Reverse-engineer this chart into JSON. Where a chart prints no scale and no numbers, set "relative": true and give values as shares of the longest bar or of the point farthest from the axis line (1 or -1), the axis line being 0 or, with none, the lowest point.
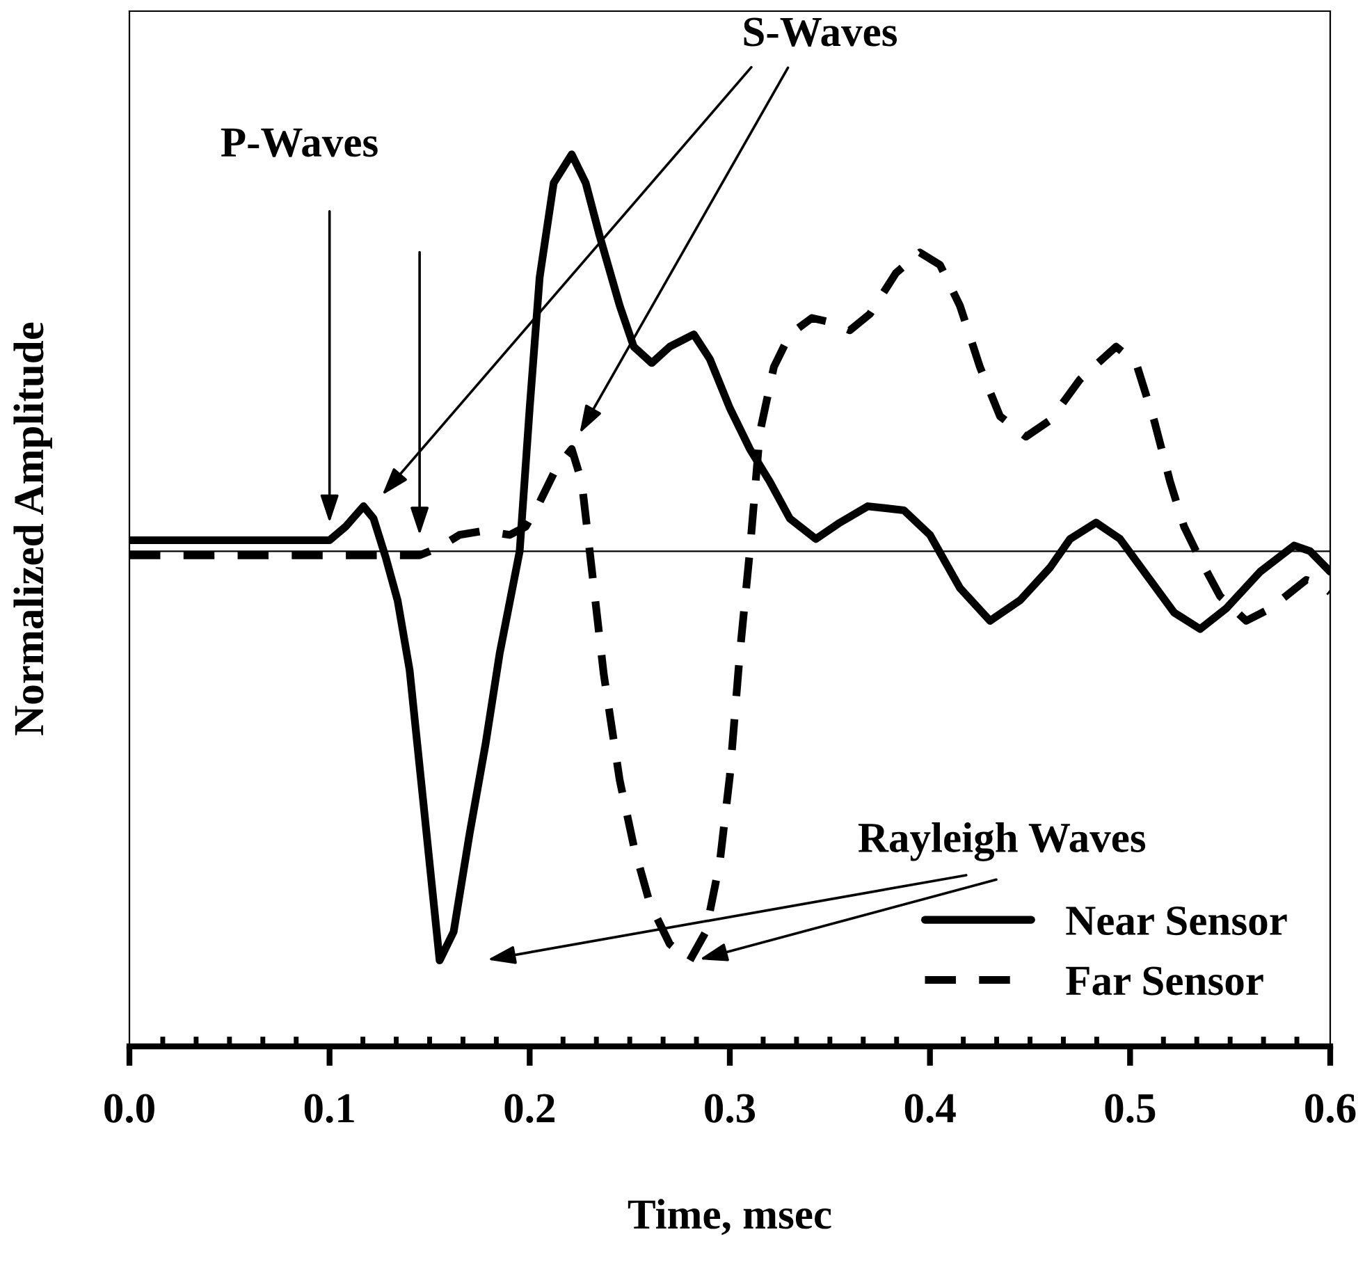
{
  "chart_data": {
    "type": "line",
    "relative": true,
    "xlabel": "Time, msec",
    "ylabel": "Normalized Amplitude",
    "xlim": [
      0,
      0.6
    ],
    "xticks": [
      {
        "value": 0,
        "label": "0.0"
      },
      {
        "value": 0.1,
        "label": "0.1"
      },
      {
        "value": 0.2,
        "label": "0.2"
      },
      {
        "value": 0.3,
        "label": "0.3"
      },
      {
        "value": 0.4,
        "label": "0.4"
      },
      {
        "value": 0.5,
        "label": "0.5"
      },
      {
        "value": 0.6,
        "label": "0.6"
      }
    ],
    "series": [
      {
        "name": "Near Sensor",
        "color": "#000000",
        "line_style": "solid",
        "x": [
          0,
          0.1,
          0.108,
          0.117,
          0.122,
          0.128,
          0.134,
          0.14,
          0.147,
          0.155,
          0.162,
          0.17,
          0.178,
          0.185,
          0.195,
          0.2,
          0.205,
          0.212,
          0.221,
          0.228,
          0.235,
          0.245,
          0.252,
          0.261,
          0.27,
          0.282,
          0.29,
          0.3,
          0.31,
          0.32,
          0.33,
          0.343,
          0.355,
          0.369,
          0.387,
          0.4,
          0.415,
          0.43,
          0.445,
          0.46,
          0.47,
          0.483,
          0.495,
          0.51,
          0.522,
          0.535,
          0.548,
          0.565,
          0.582,
          0.59,
          0.6
        ],
        "values": [
          0.027,
          0.027,
          0.06,
          0.11,
          0.08,
          -0.014,
          -0.12,
          -0.29,
          -0.62,
          -1.0,
          -0.93,
          -0.69,
          -0.47,
          -0.25,
          0,
          0.35,
          0.67,
          0.9,
          0.97,
          0.9,
          0.77,
          0.6,
          0.5,
          0.46,
          0.5,
          0.53,
          0.47,
          0.35,
          0.25,
          0.17,
          0.08,
          0.03,
          0.07,
          0.11,
          0.1,
          0.04,
          -0.09,
          -0.17,
          -0.12,
          -0.04,
          0.03,
          0.07,
          0.03,
          -0.07,
          -0.15,
          -0.19,
          -0.14,
          -0.05,
          0.014,
          0,
          -0.05
        ]
      },
      {
        "name": "Far Sensor",
        "color": "#000000",
        "line_style": "dashed",
        "x": [
          0,
          0.145,
          0.155,
          0.165,
          0.177,
          0.19,
          0.198,
          0.205,
          0.213,
          0.221,
          0.226,
          0.23,
          0.237,
          0.245,
          0.252,
          0.26,
          0.27,
          0.28,
          0.288,
          0.295,
          0.3,
          0.305,
          0.31,
          0.315,
          0.322,
          0.33,
          0.341,
          0.35,
          0.36,
          0.37,
          0.383,
          0.395,
          0.405,
          0.415,
          0.425,
          0.435,
          0.448,
          0.46,
          0.475,
          0.493,
          0.503,
          0.512,
          0.52,
          0.527,
          0.534,
          0.545,
          0.558,
          0.57,
          0.588,
          0.595,
          0.6
        ],
        "values": [
          -0.01,
          -0.01,
          0.01,
          0.04,
          0.05,
          0.04,
          0.06,
          0.12,
          0.2,
          0.25,
          0.17,
          0,
          -0.3,
          -0.56,
          -0.72,
          -0.86,
          -0.96,
          -1.0,
          -0.93,
          -0.76,
          -0.55,
          -0.25,
          0,
          0.29,
          0.45,
          0.53,
          0.57,
          0.56,
          0.54,
          0.58,
          0.68,
          0.73,
          0.7,
          0.6,
          0.45,
          0.33,
          0.28,
          0.32,
          0.42,
          0.5,
          0.46,
          0.32,
          0.17,
          0.06,
          -0.01,
          -0.11,
          -0.17,
          -0.14,
          -0.07,
          -0.08,
          -0.1
        ]
      }
    ],
    "annotations": [
      "P-Waves",
      "S-Waves",
      "Rayleigh Waves"
    ],
    "legend": "bottom right",
    "grid": false
  }
}
